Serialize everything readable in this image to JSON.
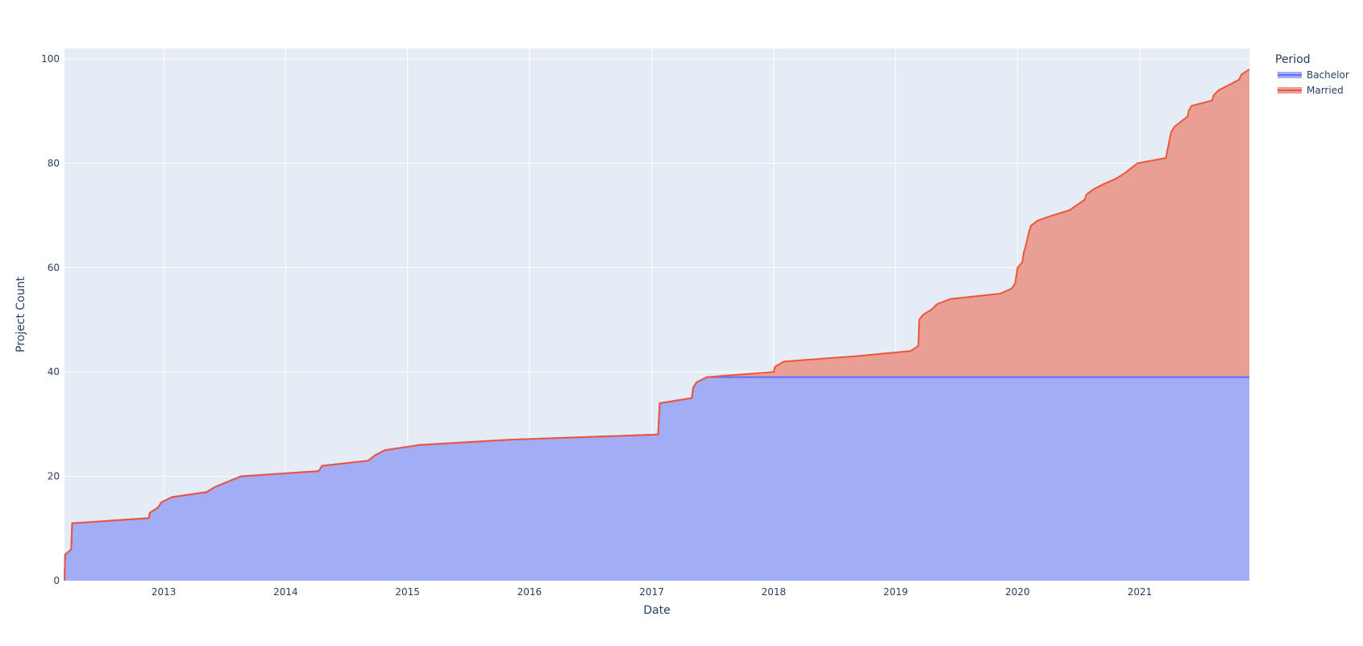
{
  "chart_data": {
    "type": "area",
    "stacked": true,
    "title": "",
    "xlabel": "Date",
    "ylabel": "Project Count",
    "xlim": [
      "2012-03-10",
      "2021-11-25"
    ],
    "ylim": [
      0,
      102
    ],
    "x_ticks": [
      "2013",
      "2014",
      "2015",
      "2016",
      "2017",
      "2018",
      "2019",
      "2020",
      "2021"
    ],
    "y_ticks": [
      0,
      20,
      40,
      60,
      80,
      100
    ],
    "grid": true,
    "legend": {
      "title": "Period",
      "position": "top-right"
    },
    "colors": {
      "Bachelor": {
        "line": "#636efa",
        "fill": "#a3adf6"
      },
      "Married": {
        "line": "#ef553b",
        "fill": "#e9a094"
      },
      "plot_bg": "#e5ecf6",
      "grid": "#ffffff",
      "text": "#2a3f5f"
    },
    "series": [
      {
        "name": "Bachelor",
        "points": [
          [
            "2012-03-10",
            0
          ],
          [
            "2012-03-12",
            5
          ],
          [
            "2012-03-30",
            6
          ],
          [
            "2012-04-02",
            11
          ],
          [
            "2012-11-18",
            12
          ],
          [
            "2012-11-20",
            13
          ],
          [
            "2012-12-15",
            14
          ],
          [
            "2012-12-25",
            15
          ],
          [
            "2013-01-25",
            16
          ],
          [
            "2013-05-10",
            17
          ],
          [
            "2013-06-05",
            18
          ],
          [
            "2013-08-20",
            20
          ],
          [
            "2014-04-10",
            21
          ],
          [
            "2014-04-20",
            22
          ],
          [
            "2014-09-05",
            23
          ],
          [
            "2014-09-25",
            24
          ],
          [
            "2014-10-25",
            25
          ],
          [
            "2015-02-05",
            26
          ],
          [
            "2015-11-01",
            27
          ],
          [
            "2017-01-20",
            28
          ],
          [
            "2017-01-25",
            34
          ],
          [
            "2017-05-01",
            35
          ],
          [
            "2017-05-05",
            37
          ],
          [
            "2017-05-15",
            38
          ],
          [
            "2017-06-15",
            39
          ],
          [
            "2021-11-25",
            39
          ]
        ]
      },
      {
        "name": "Married",
        "points": [
          [
            "2017-06-15",
            0
          ],
          [
            "2018-01-01",
            1
          ],
          [
            "2018-01-05",
            2
          ],
          [
            "2018-02-01",
            3
          ],
          [
            "2018-09-01",
            4
          ],
          [
            "2019-02-15",
            5
          ],
          [
            "2019-03-10",
            6
          ],
          [
            "2019-03-13",
            11
          ],
          [
            "2019-03-25",
            12
          ],
          [
            "2019-04-20",
            13
          ],
          [
            "2019-05-05",
            14
          ],
          [
            "2019-06-15",
            15
          ],
          [
            "2019-11-10",
            16
          ],
          [
            "2019-12-15",
            17
          ],
          [
            "2019-12-25",
            18
          ],
          [
            "2020-01-01",
            21
          ],
          [
            "2020-01-15",
            22
          ],
          [
            "2020-01-20",
            24
          ],
          [
            "2020-01-25",
            25
          ],
          [
            "2020-02-05",
            28
          ],
          [
            "2020-02-10",
            29
          ],
          [
            "2020-03-01",
            30
          ],
          [
            "2020-04-15",
            31
          ],
          [
            "2020-06-05",
            32
          ],
          [
            "2020-07-20",
            34
          ],
          [
            "2020-07-25",
            35
          ],
          [
            "2020-08-15",
            36
          ],
          [
            "2020-09-15",
            37
          ],
          [
            "2020-10-20",
            38
          ],
          [
            "2020-11-15",
            39
          ],
          [
            "2020-12-25",
            41
          ],
          [
            "2021-03-20",
            42
          ],
          [
            "2021-04-05",
            47
          ],
          [
            "2021-04-15",
            48
          ],
          [
            "2021-05-05",
            49
          ],
          [
            "2021-05-25",
            50
          ],
          [
            "2021-05-27",
            51
          ],
          [
            "2021-06-05",
            52
          ],
          [
            "2021-08-05",
            53
          ],
          [
            "2021-08-10",
            54
          ],
          [
            "2021-08-25",
            55
          ],
          [
            "2021-10-25",
            57
          ],
          [
            "2021-11-01",
            58
          ],
          [
            "2021-11-25",
            59
          ]
        ]
      }
    ]
  }
}
